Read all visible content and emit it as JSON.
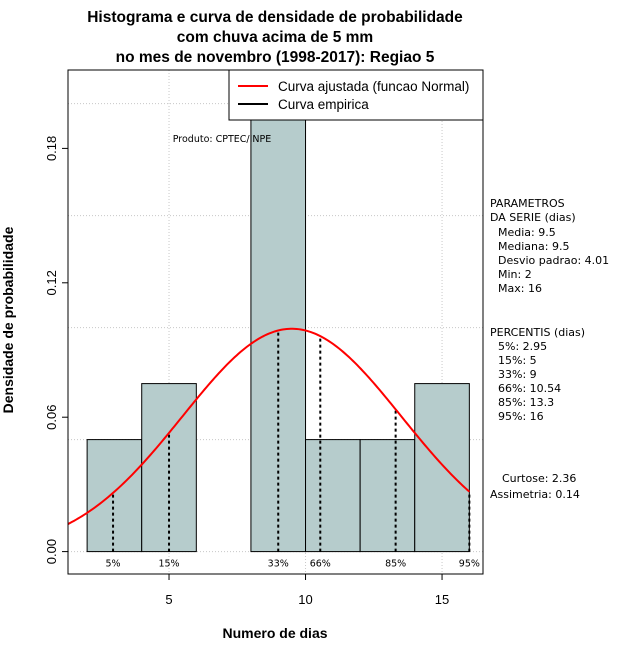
{
  "chart_data": {
    "type": "bar",
    "title": [
      "Histograma e curva de densidade de probabilidade",
      "com chuva acima de 5 mm",
      "no mes de novembro (1998-2017): Regiao 5"
    ],
    "xlabel": "Numero de dias",
    "ylabel": "Densidade de probabilidade",
    "xlim": [
      1.3,
      16.5
    ],
    "ylim": [
      -0.01,
      0.215
    ],
    "x_ticks": [
      5,
      10,
      15
    ],
    "x_tick_labels": [
      "5",
      "10",
      "15"
    ],
    "y_ticks": [
      0.0,
      0.06,
      0.12,
      0.18
    ],
    "y_tick_labels": [
      "0.00",
      "0.06",
      "0.12",
      "0.18"
    ],
    "grid": true,
    "bins": [
      {
        "x0": 2,
        "x1": 4,
        "density": 0.05
      },
      {
        "x0": 4,
        "x1": 6,
        "density": 0.075
      },
      {
        "x0": 6,
        "x1": 8,
        "density": 0.0
      },
      {
        "x0": 8,
        "x1": 10,
        "density": 0.2
      },
      {
        "x0": 10,
        "x1": 12,
        "density": 0.05
      },
      {
        "x0": 12,
        "x1": 14,
        "density": 0.05
      },
      {
        "x0": 14,
        "x1": 16,
        "density": 0.075
      }
    ],
    "normal_curve": {
      "name": "Curva ajustada (funcao Normal)",
      "mean": 9.5,
      "sd": 4.01,
      "color": "#ff0000"
    },
    "empirical_curve": {
      "name": "Curva empirica",
      "color": "#000000"
    },
    "bar_fill": "#b6cccc",
    "percentile_lines": [
      {
        "label": "5%",
        "x": 2.95
      },
      {
        "label": "15%",
        "x": 5
      },
      {
        "label": "33%",
        "x": 9
      },
      {
        "label": "66%",
        "x": 10.54
      },
      {
        "label": "85%",
        "x": 13.3
      },
      {
        "label": "95%",
        "x": 16
      }
    ],
    "legend_position": "top-right",
    "credit": "Produto: CPTEC/INPE"
  },
  "side_panel": {
    "params_title": [
      "PARAMETROS",
      "DA SERIE (dias)"
    ],
    "params": [
      "Media: 9.5",
      "Mediana: 9.5",
      "Desvio padrao: 4.01",
      "Min: 2",
      "Max: 16"
    ],
    "percentis_title": "PERCENTIS (dias)",
    "percentis": [
      "5%: 2.95",
      "15%: 5",
      "33%: 9",
      "66%: 10.54",
      "85%: 13.3",
      "95%: 16"
    ],
    "curtose": "Curtose: 2.36",
    "assimetria": "Assimetria: 0.14"
  }
}
